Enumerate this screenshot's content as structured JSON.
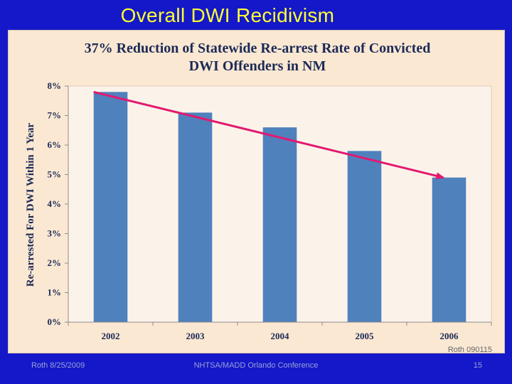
{
  "slide": {
    "title": "Overall DWI Recidivism",
    "footer_left": "Roth 8/25/2009",
    "footer_center": "NHTSA/MADD Orlando Conference",
    "footer_right": "15"
  },
  "chart_data": {
    "type": "bar",
    "title_lines": [
      "37% Reduction of Statewide Re-arrest Rate of Convicted",
      "DWI Offenders in NM"
    ],
    "ylabel": "Re-arrested For DWI Within 1 Year",
    "xlabel": "",
    "categories": [
      "2002",
      "2003",
      "2004",
      "2005",
      "2006"
    ],
    "values": [
      7.8,
      7.1,
      6.6,
      5.8,
      4.9
    ],
    "ylim": [
      0,
      8
    ],
    "yticks": [
      "0%",
      "1%",
      "2%",
      "3%",
      "4%",
      "5%",
      "6%",
      "7%",
      "8%"
    ],
    "trend_line": {
      "from_value": 7.8,
      "to_value": 4.9,
      "from_category": "2002",
      "to_category": "2006"
    },
    "note": "Roth 090115",
    "grid": false
  },
  "colors": {
    "background": "#1418c8",
    "title": "#ffff33",
    "chart_bg": "#fbe8d3",
    "bar": "#4f81bd",
    "trend": "#e3196f"
  }
}
